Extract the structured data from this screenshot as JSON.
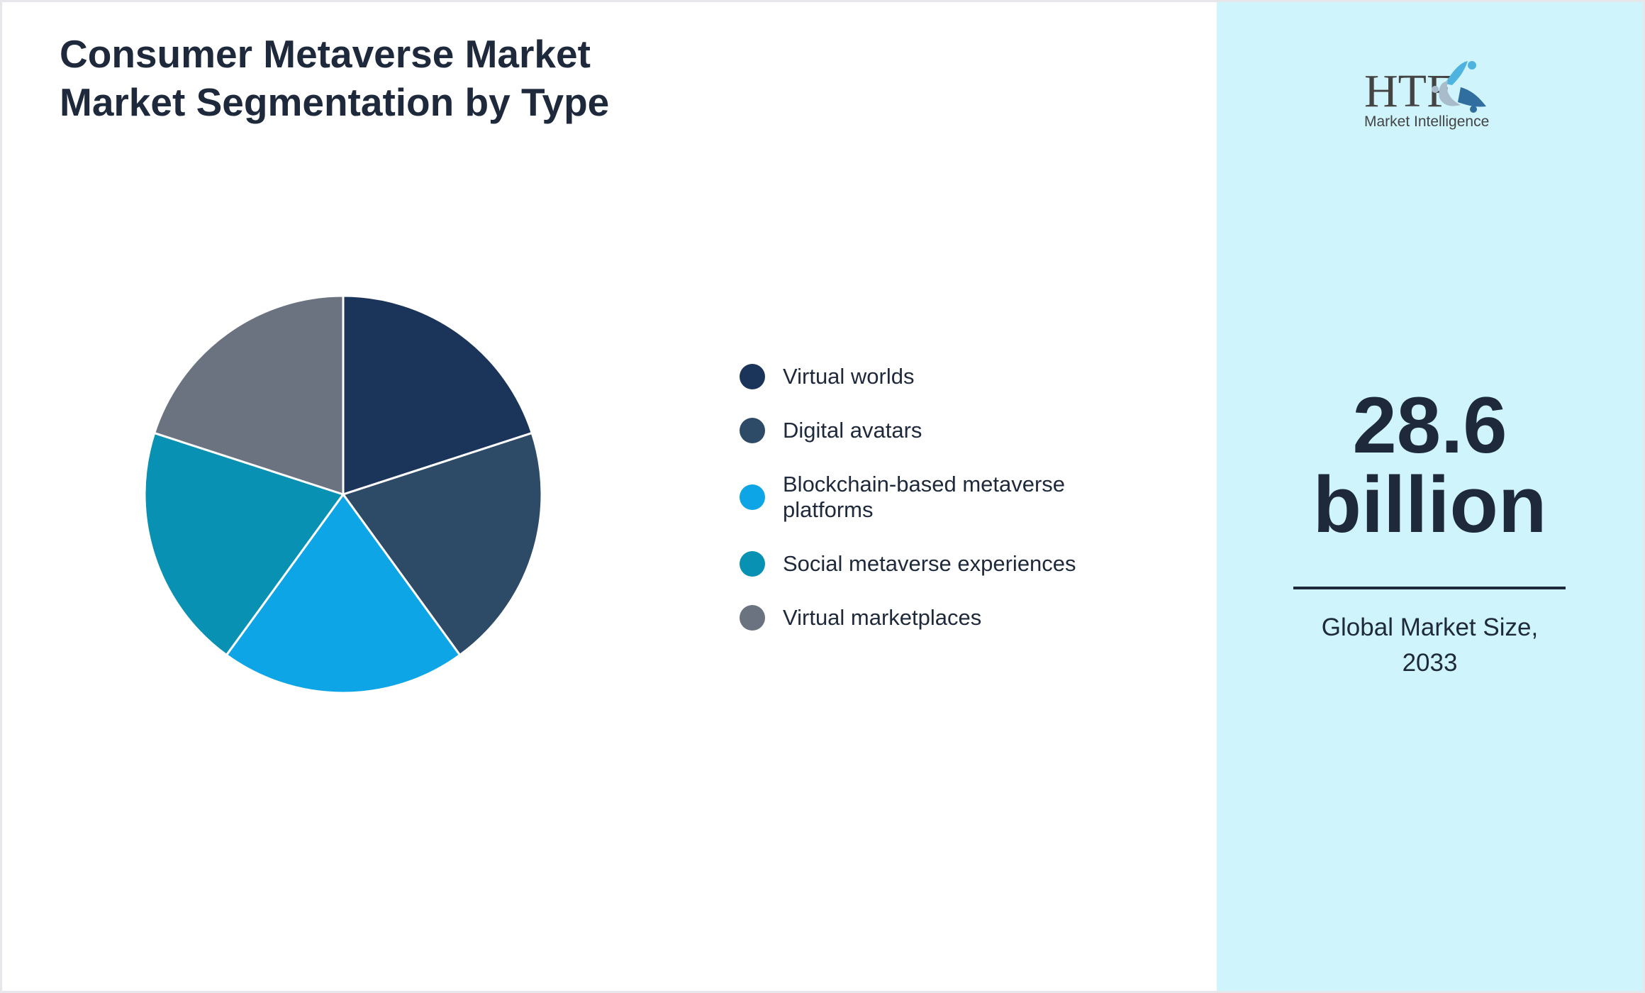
{
  "title": {
    "line1": "Consumer Metaverse Market",
    "line2": "Market Segmentation by Type"
  },
  "logo": {
    "brand": "HTF",
    "tagline": "Market Intelligence"
  },
  "headline": {
    "value": "28.6",
    "unit": "billion",
    "caption_line1": "Global Market Size,",
    "caption_line2": "2033"
  },
  "chart_data": {
    "type": "pie",
    "title": "Consumer Metaverse Market Market Segmentation by Type",
    "legend_position": "right",
    "categories": [
      "Virtual worlds",
      "Digital avatars",
      "Blockchain-based metaverse platforms",
      "Social metaverse experiences",
      "Virtual marketplaces"
    ],
    "values": [
      20,
      20,
      20,
      20,
      20
    ],
    "colors": [
      "#1b355a",
      "#2d4a66",
      "#0ea5e6",
      "#0891b2",
      "#6b7280"
    ]
  }
}
